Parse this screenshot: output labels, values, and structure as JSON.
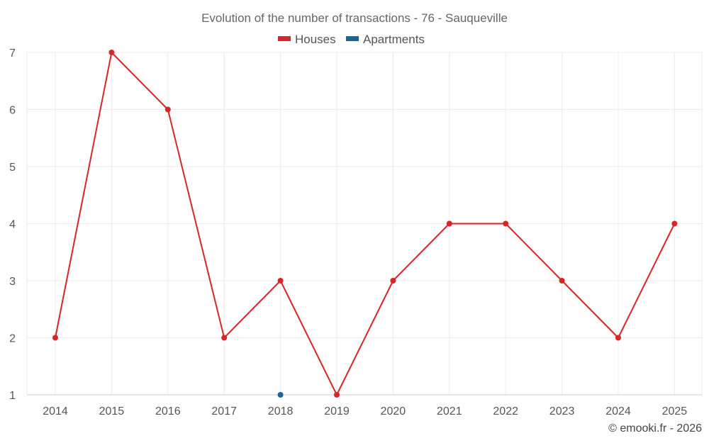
{
  "chart_data": {
    "type": "line",
    "title": "Evolution of the number of transactions - 76 - Sauqueville",
    "xlabel": "",
    "ylabel": "",
    "categories": [
      "2014",
      "2015",
      "2016",
      "2017",
      "2018",
      "2019",
      "2020",
      "2021",
      "2022",
      "2023",
      "2024",
      "2025"
    ],
    "y_ticks": [
      "1",
      "2",
      "3",
      "4",
      "5",
      "6",
      "7"
    ],
    "ylim": [
      1,
      7
    ],
    "grid": true,
    "legend": "top-center",
    "series": [
      {
        "name": "Houses",
        "color": "#d62728",
        "values": [
          2,
          7,
          6,
          2,
          3,
          1,
          3,
          4,
          4,
          3,
          2,
          4
        ]
      },
      {
        "name": "Apartments",
        "color": "#1a6496",
        "values": [
          null,
          null,
          null,
          null,
          1,
          null,
          null,
          null,
          null,
          null,
          null,
          null
        ]
      }
    ]
  },
  "credit": "© emooki.fr - 2026"
}
